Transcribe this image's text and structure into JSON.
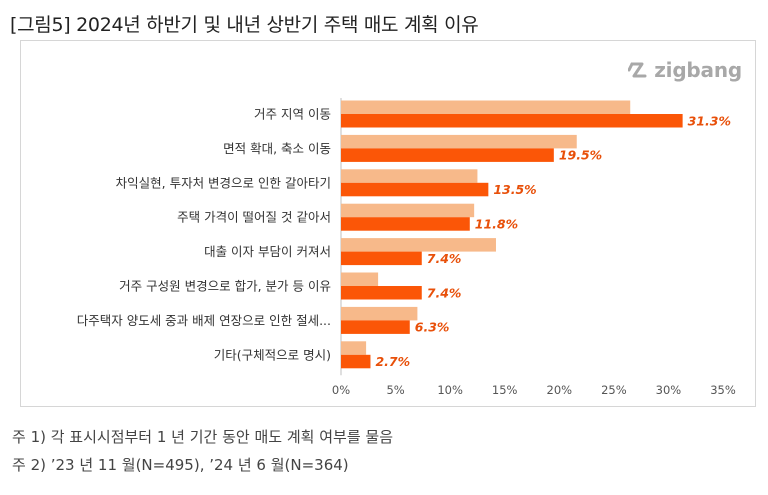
{
  "title": "[그림5] 2024년 하반기 및 내년 상반기 주택 매도 계획 이유",
  "brand": {
    "logo_text": "zigbang",
    "logo_color": "#a8a8a8"
  },
  "notes": [
    "주 1) 각 표시시점부터 1 년 기간 동안 매도 계획 여부를 물음",
    "주 2) ’23 년 11 월(N=495), ’24 년 6 월(N=364)"
  ],
  "colors": {
    "series_2023": "#f7b98a",
    "series_2024": "#fb5607",
    "value_label": "#e8500a"
  },
  "chart_data": {
    "type": "bar",
    "orientation": "horizontal",
    "title": "[그림5] 2024년 하반기 및 내년 상반기 주택 매도 계획 이유",
    "categories": [
      "거주 지역 이동",
      "면적 확대, 축소 이동",
      "차익실현, 투자처 변경으로 인한 갈아타기",
      "주택 가격이 떨어질 것 같아서",
      "대출 이자 부담이 커져서",
      "거주 구성원 변경으로 합가, 분가 등 이유",
      "다주택자 양도세 중과 배제 연장으로 인한 절세...",
      "기타(구체적으로 명시)"
    ],
    "series": [
      {
        "name": "’23 년 11 월",
        "values": [
          26.5,
          21.6,
          12.5,
          12.2,
          14.2,
          3.4,
          7.0,
          2.3
        ],
        "labeled": false
      },
      {
        "name": "’24 년 6 월",
        "values": [
          31.3,
          19.5,
          13.5,
          11.8,
          7.4,
          7.4,
          6.3,
          2.7
        ],
        "labeled": true
      }
    ],
    "value_labels": [
      "31.3%",
      "19.5%",
      "13.5%",
      "11.8%",
      "7.4%",
      "7.4%",
      "6.3%",
      "2.7%"
    ],
    "xlim": [
      0,
      35
    ],
    "xticks": [
      0,
      5,
      10,
      15,
      20,
      25,
      30,
      35
    ],
    "xtick_labels": [
      "0%",
      "5%",
      "10%",
      "15%",
      "20%",
      "25%",
      "30%",
      "35%"
    ],
    "xlabel": "",
    "ylabel": "",
    "grid": false,
    "legend": "none"
  }
}
